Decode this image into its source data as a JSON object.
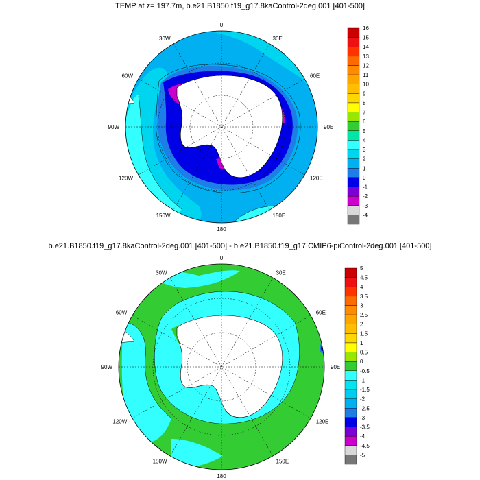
{
  "panels": [
    {
      "title": "TEMP at z= 197.7m, b.e21.B1850.f19_g17.8kaControl-2deg.001 [401-500]",
      "lon_labels": [
        "0",
        "30E",
        "60E",
        "90E",
        "120E",
        "150E",
        "180",
        "150W",
        "120W",
        "90W",
        "60W",
        "30W"
      ],
      "colorbar": {
        "labels": [
          "16",
          "15",
          "14",
          "13",
          "12",
          "11",
          "10",
          "9",
          "8",
          "7",
          "6",
          "5",
          "4",
          "3",
          "2",
          "1",
          "0",
          "-1",
          "-2",
          "-3",
          "-4"
        ],
        "colors": [
          "#cc0000",
          "#ee1111",
          "#ff3300",
          "#ff6a00",
          "#ff8c00",
          "#ffa500",
          "#ffbf00",
          "#ffd700",
          "#ffff00",
          "#99e600",
          "#33cc33",
          "#00e6a8",
          "#33ffff",
          "#00d5f0",
          "#00b0f0",
          "#1e7de6",
          "#0000e6",
          "#7a00d6",
          "#cc00cc",
          "#d9d9d9",
          "#777777"
        ],
        "range": [
          -4,
          16
        ]
      }
    },
    {
      "title": "b.e21.B1850.f19_g17.8kaControl-2deg.001 [401-500] - b.e21.B1850.f19_g17.CMIP6-piControl-2deg.001 [401-500]",
      "lon_labels": [
        "0",
        "30E",
        "60E",
        "90E",
        "120E",
        "150E",
        "180",
        "150W",
        "120W",
        "90W",
        "60W",
        "30W"
      ],
      "colorbar": {
        "labels": [
          "5",
          "4.5",
          "4",
          "3.5",
          "3",
          "2.5",
          "2",
          "1.5",
          "1",
          "0.5",
          "0",
          "-0.5",
          "-1",
          "-1.5",
          "-2",
          "-2.5",
          "-3",
          "-3.5",
          "-4",
          "-4.5",
          "-5"
        ],
        "colors": [
          "#cc0000",
          "#ee1111",
          "#ff3300",
          "#ff6a00",
          "#ff8c00",
          "#ffa500",
          "#ffbf00",
          "#ffd700",
          "#ffff00",
          "#99e600",
          "#33cc33",
          "#33ffff",
          "#00e6f0",
          "#00ccf0",
          "#00b0f0",
          "#1e7de6",
          "#0000e6",
          "#7a00d6",
          "#cc00cc",
          "#d9d9d9",
          "#777777"
        ],
        "range": [
          -5,
          5
        ]
      }
    }
  ]
}
